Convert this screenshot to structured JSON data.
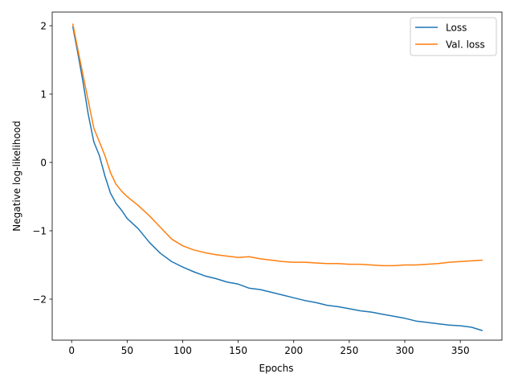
{
  "chart_data": {
    "type": "line",
    "title": "",
    "xlabel": "Epochs",
    "ylabel": "Negative log-likelihood",
    "xlim": [
      -17.5,
      387.5
    ],
    "ylim": [
      -2.6,
      2.2
    ],
    "xticks": [
      0,
      50,
      100,
      150,
      200,
      250,
      300,
      350
    ],
    "yticks": [
      2,
      1,
      0,
      -1,
      -2
    ],
    "ytick_labels": [
      "2",
      "1",
      "0",
      "−1",
      "−2"
    ],
    "grid": false,
    "legend": "top-right",
    "series": [
      {
        "name": "Loss",
        "color": "#1f77b4",
        "x": [
          1,
          5,
          10,
          15,
          20,
          25,
          30,
          35,
          40,
          45,
          50,
          60,
          70,
          80,
          90,
          100,
          110,
          120,
          130,
          140,
          150,
          160,
          170,
          180,
          190,
          200,
          210,
          220,
          230,
          240,
          250,
          260,
          270,
          280,
          290,
          300,
          310,
          320,
          330,
          340,
          350,
          360,
          370
        ],
        "y": [
          1.99,
          1.65,
          1.2,
          0.7,
          0.3,
          0.1,
          -0.2,
          -0.45,
          -0.6,
          -0.7,
          -0.82,
          -0.97,
          -1.17,
          -1.33,
          -1.45,
          -1.53,
          -1.6,
          -1.66,
          -1.7,
          -1.75,
          -1.78,
          -1.84,
          -1.86,
          -1.9,
          -1.94,
          -1.98,
          -2.02,
          -2.05,
          -2.09,
          -2.11,
          -2.14,
          -2.17,
          -2.19,
          -2.22,
          -2.25,
          -2.28,
          -2.32,
          -2.34,
          -2.36,
          -2.38,
          -2.39,
          -2.41,
          -2.46
        ]
      },
      {
        "name": "Val. loss",
        "color": "#ff7f0e",
        "x": [
          1,
          5,
          10,
          15,
          20,
          25,
          30,
          35,
          40,
          45,
          50,
          60,
          70,
          80,
          90,
          100,
          110,
          120,
          130,
          140,
          150,
          160,
          170,
          180,
          190,
          200,
          210,
          220,
          230,
          240,
          250,
          260,
          270,
          280,
          290,
          300,
          310,
          320,
          330,
          340,
          350,
          360,
          370
        ],
        "y": [
          2.03,
          1.7,
          1.3,
          0.9,
          0.5,
          0.3,
          0.1,
          -0.15,
          -0.32,
          -0.42,
          -0.5,
          -0.63,
          -0.78,
          -0.95,
          -1.12,
          -1.22,
          -1.28,
          -1.32,
          -1.35,
          -1.37,
          -1.39,
          -1.38,
          -1.41,
          -1.43,
          -1.45,
          -1.46,
          -1.46,
          -1.47,
          -1.48,
          -1.48,
          -1.49,
          -1.49,
          -1.5,
          -1.51,
          -1.51,
          -1.5,
          -1.5,
          -1.49,
          -1.48,
          -1.46,
          -1.45,
          -1.44,
          -1.43
        ]
      }
    ]
  }
}
